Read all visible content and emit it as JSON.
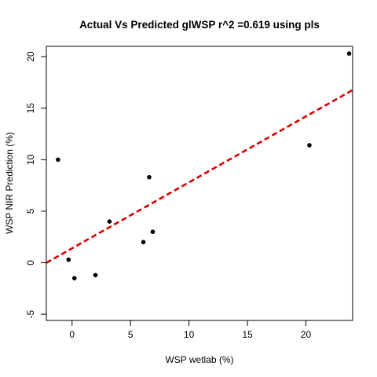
{
  "chart_data": {
    "type": "scatter",
    "title": "Actual Vs Predicted glWSP r^2 =0.619 using pls",
    "xlabel": "WSP wetlab (%)",
    "ylabel": "WSP NIR Prediction (%)",
    "xlim": [
      -2.2,
      24.0
    ],
    "ylim": [
      -5.6,
      21.0
    ],
    "x_ticks": [
      0,
      5,
      10,
      15,
      20
    ],
    "y_ticks": [
      -5,
      0,
      5,
      10,
      15,
      20
    ],
    "grid": false,
    "series": [
      {
        "points": [
          {
            "x": -1.2,
            "y": 10.0
          },
          {
            "x": -0.3,
            "y": 0.3
          },
          {
            "x": 0.2,
            "y": -1.5
          },
          {
            "x": 2.0,
            "y": -1.2
          },
          {
            "x": 3.2,
            "y": 4.0
          },
          {
            "x": 6.1,
            "y": 2.0
          },
          {
            "x": 6.6,
            "y": 8.3
          },
          {
            "x": 6.9,
            "y": 3.0
          },
          {
            "x": 20.3,
            "y": 11.4
          },
          {
            "x": 23.7,
            "y": 20.3
          }
        ],
        "color": "#000000"
      }
    ],
    "fit_line": {
      "style": "dashed",
      "color": "#dd0000",
      "intercept": 1.4,
      "slope": 0.64
    }
  }
}
